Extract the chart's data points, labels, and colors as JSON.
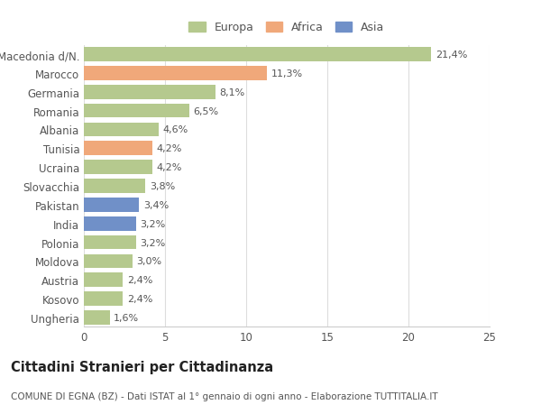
{
  "categories": [
    "Macedonia d/N.",
    "Marocco",
    "Germania",
    "Romania",
    "Albania",
    "Tunisia",
    "Ucraina",
    "Slovacchia",
    "Pakistan",
    "India",
    "Polonia",
    "Moldova",
    "Austria",
    "Kosovo",
    "Ungheria"
  ],
  "values": [
    21.4,
    11.3,
    8.1,
    6.5,
    4.6,
    4.2,
    4.2,
    3.8,
    3.4,
    3.2,
    3.2,
    3.0,
    2.4,
    2.4,
    1.6
  ],
  "labels": [
    "21,4%",
    "11,3%",
    "8,1%",
    "6,5%",
    "4,6%",
    "4,2%",
    "4,2%",
    "3,8%",
    "3,4%",
    "3,2%",
    "3,2%",
    "3,0%",
    "2,4%",
    "2,4%",
    "1,6%"
  ],
  "continents": [
    "Europa",
    "Africa",
    "Europa",
    "Europa",
    "Europa",
    "Africa",
    "Europa",
    "Europa",
    "Asia",
    "Asia",
    "Europa",
    "Europa",
    "Europa",
    "Europa",
    "Europa"
  ],
  "colors": {
    "Europa": "#b5c98e",
    "Africa": "#f0a87a",
    "Asia": "#7090c8"
  },
  "xlim": [
    0,
    25
  ],
  "xticks": [
    0,
    5,
    10,
    15,
    20,
    25
  ],
  "title": "Cittadini Stranieri per Cittadinanza",
  "subtitle": "COMUNE DI EGNA (BZ) - Dati ISTAT al 1° gennaio di ogni anno - Elaborazione TUTTITALIA.IT",
  "background_color": "#ffffff",
  "bar_height": 0.75,
  "label_fontsize": 8.0,
  "ytick_fontsize": 8.5,
  "xtick_fontsize": 8.5,
  "title_fontsize": 10.5,
  "subtitle_fontsize": 7.5
}
